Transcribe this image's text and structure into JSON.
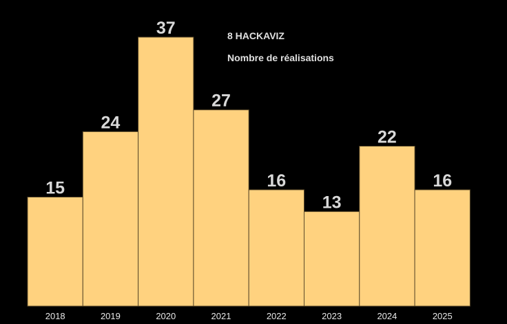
{
  "chart_data": {
    "type": "bar",
    "title": "8 HACKAVIZ",
    "subtitle": "Nombre de réalisations",
    "xlabel": "",
    "ylabel": "",
    "categories": [
      "2018",
      "2019",
      "2020",
      "2021",
      "2022",
      "2023",
      "2024",
      "2025"
    ],
    "values": [
      15,
      24,
      37,
      27,
      16,
      13,
      22,
      16
    ],
    "ylim": [
      0,
      37
    ],
    "grid": false,
    "legend": "none",
    "bar_color": "#ffd27f",
    "bar_edge_color": "#5a4a2a",
    "background_color": "#000000",
    "label_color": "#d9d9d9"
  }
}
